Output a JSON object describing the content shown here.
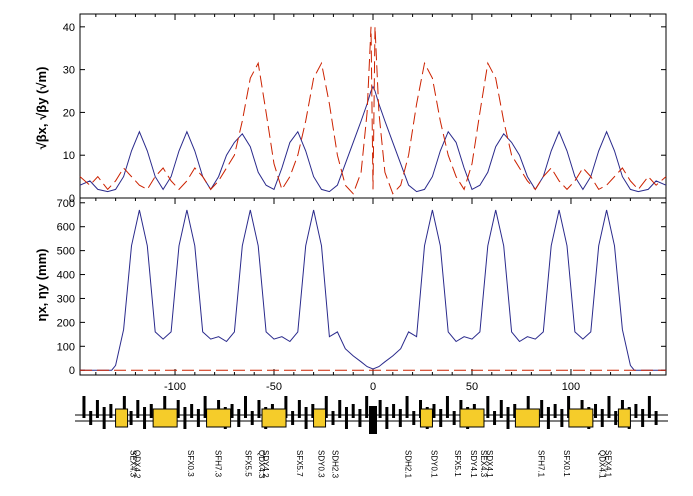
{
  "chart_data": [
    {
      "type": "line",
      "panel": "beta",
      "ylabel": "√βx, √βy (√m)",
      "ylim": [
        0,
        43
      ],
      "xlim": [
        -148,
        148
      ],
      "yticks": [
        0,
        10,
        20,
        30,
        40
      ],
      "colors": {
        "x": "#2a2a8c",
        "y": "#cc2200"
      },
      "series": [
        {
          "name": "sqrt_beta_x",
          "style": "solid",
          "x": [
            -148,
            -143,
            -139,
            -134,
            -130,
            -126,
            -122,
            -118,
            -114,
            -110,
            -106,
            -102,
            -98,
            -94,
            -90,
            -86,
            -82,
            -78,
            -74,
            -70,
            -66,
            -62,
            -58,
            -54,
            -50,
            -46,
            -42,
            -38,
            -34,
            -30,
            -26,
            -22,
            -18,
            -14,
            -10,
            -6,
            -3,
            -1,
            0,
            1,
            3,
            6,
            10,
            14,
            18,
            22,
            26,
            30,
            34,
            38,
            42,
            46,
            50,
            54,
            58,
            62,
            66,
            70,
            74,
            78,
            82,
            86,
            90,
            94,
            98,
            102,
            106,
            110,
            114,
            118,
            122,
            126,
            130,
            134,
            139,
            143,
            148
          ],
          "values": [
            3,
            4,
            2,
            1.5,
            2,
            5,
            11,
            15.5,
            11,
            5,
            2,
            5,
            11,
            15.5,
            11,
            5,
            2,
            5,
            10,
            13,
            15,
            12,
            6,
            3,
            2,
            7,
            13,
            15.5,
            11,
            5,
            2,
            1.5,
            3,
            8,
            13,
            18,
            22,
            25,
            26,
            25,
            22,
            18,
            13,
            8,
            3,
            1.5,
            2,
            5,
            11,
            15.5,
            13,
            7,
            2,
            3,
            6,
            12,
            15,
            13,
            10,
            5,
            2,
            5,
            11,
            15.5,
            11,
            5,
            2,
            5,
            11,
            15.5,
            11,
            5,
            2,
            1.5,
            2,
            4,
            3
          ]
        },
        {
          "name": "sqrt_beta_y",
          "style": "dashed",
          "x": [
            -148,
            -143,
            -139,
            -134,
            -130,
            -126,
            -122,
            -118,
            -114,
            -110,
            -106,
            -102,
            -98,
            -94,
            -90,
            -86,
            -82,
            -78,
            -74,
            -70,
            -66,
            -62,
            -58,
            -54,
            -50,
            -46,
            -42,
            -38,
            -34,
            -30,
            -26,
            -22,
            -18,
            -14,
            -10,
            -6,
            -3,
            -1,
            0,
            1,
            3,
            6,
            10,
            14,
            18,
            22,
            26,
            30,
            34,
            38,
            42,
            46,
            50,
            54,
            58,
            62,
            66,
            70,
            74,
            78,
            82,
            86,
            90,
            94,
            98,
            102,
            106,
            110,
            114,
            118,
            122,
            126,
            130,
            134,
            139,
            143,
            148
          ],
          "values": [
            5,
            3,
            5,
            2,
            4,
            7,
            5,
            3,
            2,
            5,
            7,
            4,
            2,
            4,
            7,
            5,
            2,
            4,
            7,
            10,
            18,
            28,
            31.5,
            20,
            8,
            2,
            5,
            10,
            18,
            28,
            31.5,
            22,
            10,
            3,
            1,
            6,
            20,
            40,
            2,
            40,
            20,
            6,
            1,
            3,
            10,
            22,
            31.5,
            28,
            18,
            10,
            5,
            2,
            8,
            20,
            31.5,
            28,
            18,
            10,
            7,
            4,
            2,
            5,
            7,
            4,
            2,
            4,
            7,
            5,
            2,
            3,
            5,
            7,
            4,
            2,
            5,
            3,
            5
          ]
        }
      ]
    },
    {
      "type": "line",
      "panel": "dispersion",
      "ylabel": "ηx, ηy (mm)",
      "xlabel": "",
      "ylim": [
        -20,
        720
      ],
      "xlim": [
        -148,
        148
      ],
      "yticks": [
        0,
        100,
        200,
        300,
        400,
        500,
        600,
        700
      ],
      "xticks": [
        -100,
        -50,
        0,
        50,
        100
      ],
      "series": [
        {
          "name": "eta_x",
          "style": "solid",
          "x": [
            -148,
            -132,
            -130,
            -126,
            -122,
            -118,
            -114,
            -110,
            -106,
            -102,
            -98,
            -94,
            -90,
            -86,
            -82,
            -78,
            -74,
            -70,
            -66,
            -62,
            -58,
            -54,
            -50,
            -46,
            -42,
            -38,
            -34,
            -30,
            -26,
            -22,
            -18,
            -14,
            -10,
            -6,
            -3,
            0,
            3,
            6,
            10,
            14,
            18,
            22,
            26,
            30,
            34,
            38,
            42,
            46,
            50,
            54,
            58,
            62,
            66,
            70,
            74,
            78,
            82,
            86,
            90,
            94,
            98,
            102,
            106,
            110,
            114,
            118,
            122,
            126,
            130,
            132,
            148
          ],
          "values": [
            0,
            0,
            20,
            170,
            520,
            670,
            520,
            160,
            130,
            160,
            520,
            670,
            520,
            160,
            130,
            140,
            120,
            160,
            520,
            670,
            520,
            160,
            130,
            140,
            120,
            160,
            520,
            670,
            520,
            140,
            160,
            90,
            60,
            35,
            15,
            5,
            15,
            35,
            60,
            90,
            160,
            140,
            520,
            670,
            520,
            160,
            120,
            140,
            130,
            160,
            520,
            670,
            520,
            160,
            120,
            140,
            130,
            160,
            520,
            670,
            520,
            160,
            130,
            160,
            520,
            670,
            520,
            170,
            20,
            0,
            0
          ]
        },
        {
          "name": "eta_y",
          "style": "dashed",
          "x": [
            -148,
            148
          ],
          "values": [
            0,
            0
          ]
        }
      ]
    }
  ],
  "lattice": {
    "labels": [
      "SEX4.3",
      "QDX4.2",
      "SFX0.3",
      "SFH7.3",
      "SFX5.5",
      "QDX4.3",
      "SDY4.2",
      "SFX5.7",
      "SDY0.3",
      "SDH2.3",
      "SDH2.1",
      "SDY0.1",
      "SFX5.1",
      "SDY4.1",
      "SEX4.3",
      "SDX4.1",
      "SFH7.1",
      "SFX0.1",
      "QDX4.1",
      "SEX4.1"
    ]
  }
}
